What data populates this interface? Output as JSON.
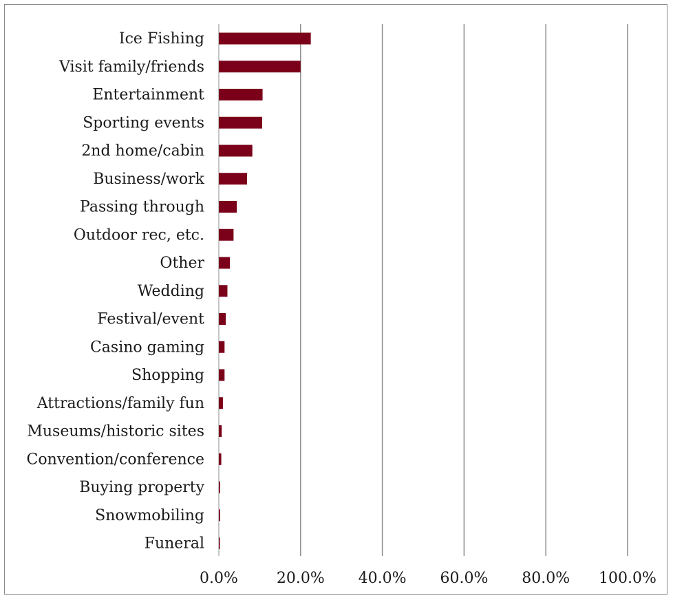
{
  "chart_data": {
    "type": "bar",
    "orientation": "horizontal",
    "title": "",
    "xlabel": "",
    "ylabel": "",
    "categories": [
      "Ice Fishing",
      "Visit family/friends",
      "Entertainment",
      "Sporting events",
      "2nd home/cabin",
      "Business/work",
      "Passing through",
      "Outdoor rec, etc.",
      "Other",
      "Wedding",
      "Festival/event",
      "Casino gaming",
      "Shopping",
      "Attractions/family fun",
      "Museums/historic sites",
      "Convention/conference",
      "Buying property",
      "Snowmobiling",
      "Funeral"
    ],
    "values": [
      22.5,
      20.0,
      10.7,
      10.6,
      8.2,
      6.9,
      4.4,
      3.6,
      2.7,
      2.1,
      1.7,
      1.4,
      1.4,
      1.0,
      0.7,
      0.6,
      0.3,
      0.3,
      0.2
    ],
    "xlim": [
      0,
      100
    ],
    "ticks": [
      "0.0%",
      "20.0%",
      "40.0%",
      "60.0%",
      "80.0%",
      "100.0%"
    ],
    "tick_values": [
      0,
      20,
      40,
      60,
      80,
      100
    ],
    "grid": true,
    "legend": "none",
    "bar_color": "#7b0019",
    "grid_color": "#8c8c8c"
  }
}
